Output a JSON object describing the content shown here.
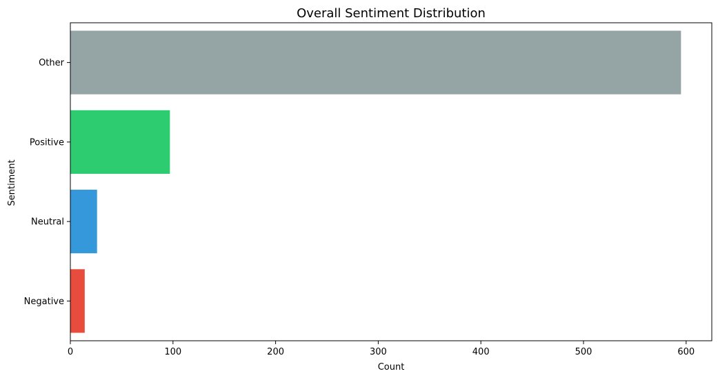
{
  "chart_data": {
    "type": "bar",
    "orientation": "horizontal",
    "title": "Overall Sentiment Distribution",
    "xlabel": "Count",
    "ylabel": "Sentiment",
    "categories": [
      "Other",
      "Positive",
      "Neutral",
      "Negative"
    ],
    "values": [
      595,
      97,
      26,
      14
    ],
    "colors": [
      "#95a5a6",
      "#2ecc71",
      "#3498db",
      "#e74c3c"
    ],
    "xlim": [
      0,
      625
    ],
    "xticks": [
      "0",
      "100",
      "200",
      "300",
      "400",
      "500",
      "600"
    ],
    "grid": false,
    "legend": "none"
  }
}
